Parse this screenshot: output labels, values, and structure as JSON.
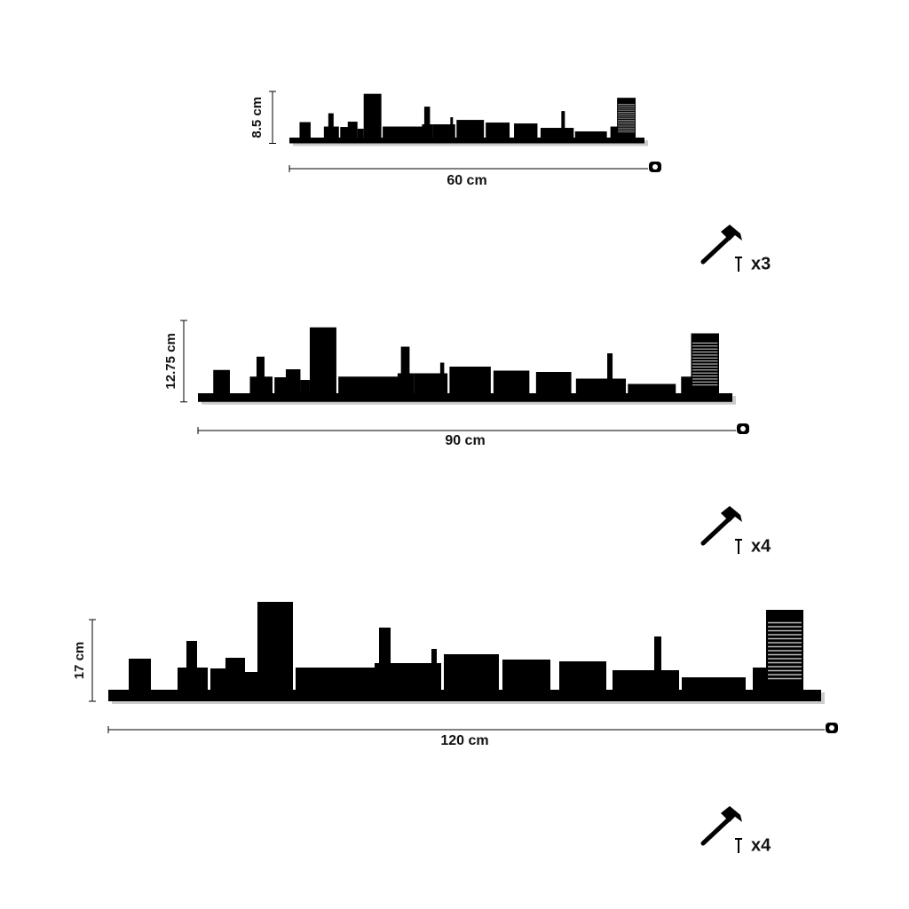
{
  "variants": [
    {
      "height": "8.5 cm",
      "width": "60 cm",
      "nails": "x3"
    },
    {
      "height": "12.75 cm",
      "width": "90 cm",
      "nails": "x4"
    },
    {
      "height": "17 cm",
      "width": "120 cm",
      "nails": "x4"
    }
  ]
}
